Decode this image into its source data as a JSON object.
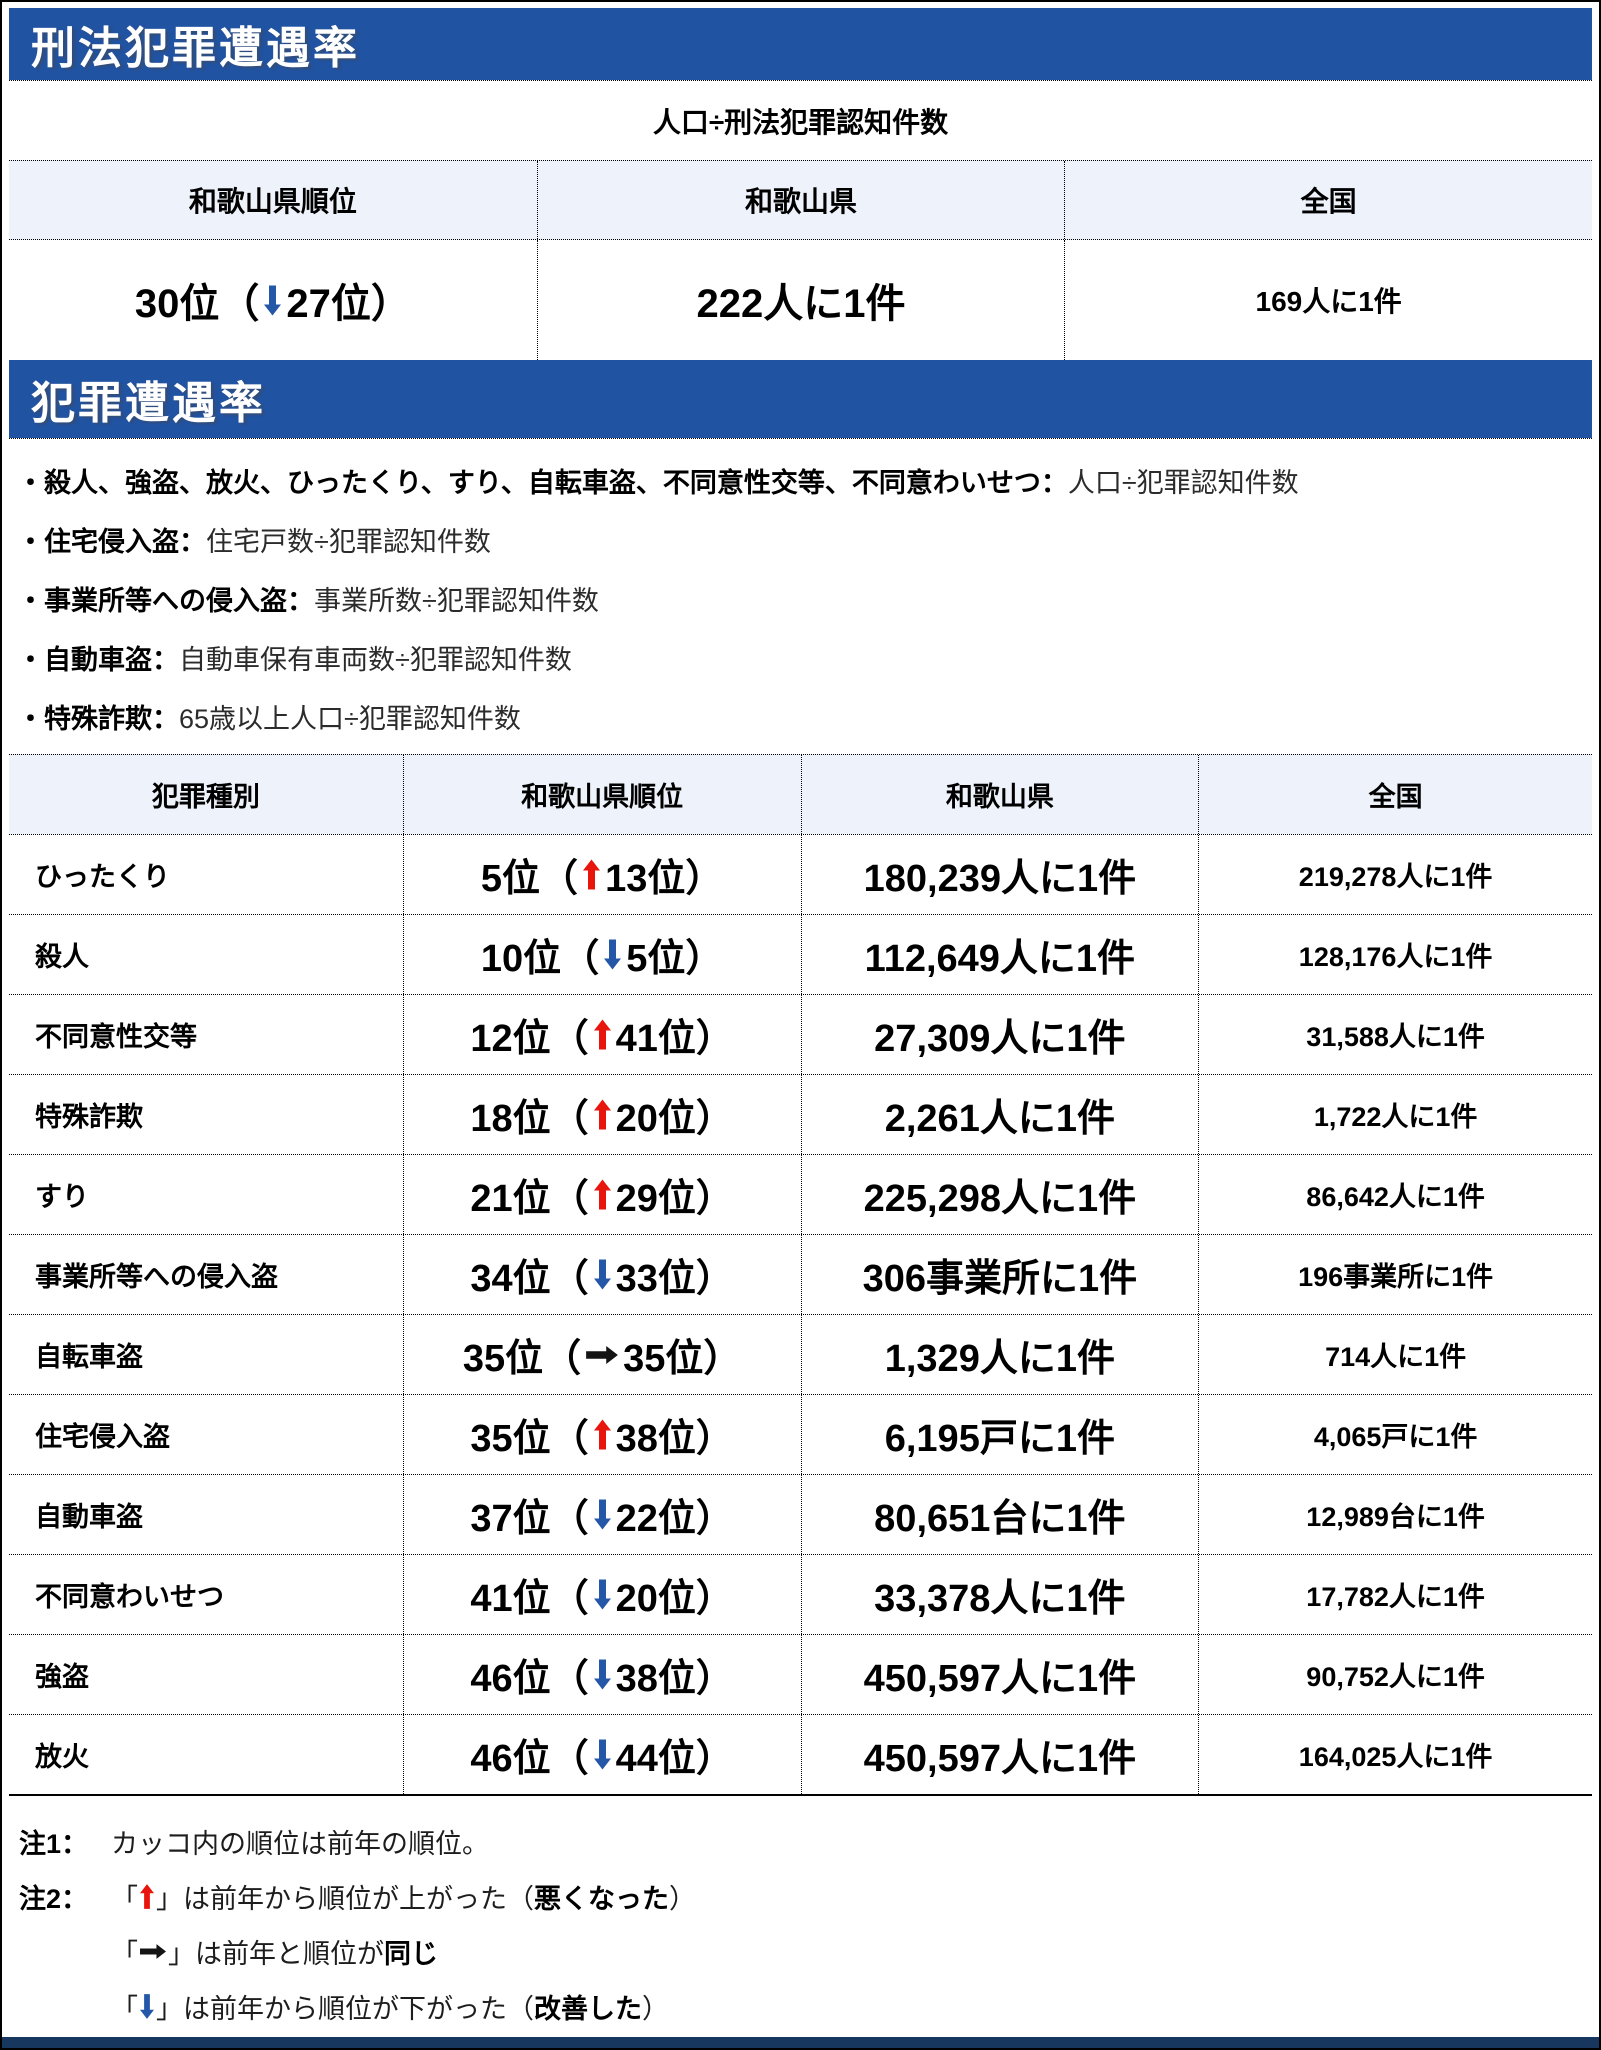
{
  "page": {
    "section1_title": "刑法犯罪遭遇率",
    "section2_title": "犯罪遭遇率"
  },
  "glyphs": {
    "paren_open": "（",
    "paren_close": "）",
    "quote_open": "「",
    "quote_close": "」"
  },
  "colors": {
    "band_blue": "#2153a3",
    "table_header_bg": "#eef2fa",
    "arrow_up_red": "#e8150c",
    "arrow_down_blue": "#2457a8",
    "arrow_same": "#141414",
    "footer_bar": "#17375e"
  },
  "summary_table": {
    "formula": "人口÷刑法犯罪認知件数",
    "headers": [
      "和歌山県順位",
      "和歌山県",
      "全国"
    ],
    "row": {
      "rank": "30位",
      "prev_rank": "27位",
      "arrow": "down",
      "wakayama": "222人に1件",
      "national": "169人に1件"
    }
  },
  "definitions": [
    {
      "label": "・殺人、強盗、放火、ひったくり、すり、自転車盗、不同意性交等、不同意わいせつ：",
      "formula": "人口÷犯罪認知件数"
    },
    {
      "label": "・住宅侵入盗：",
      "formula": "住宅戸数÷犯罪認知件数"
    },
    {
      "label": "・事業所等への侵入盗：",
      "formula": "事業所数÷犯罪認知件数"
    },
    {
      "label": "・自動車盗：",
      "formula": "自動車保有車両数÷犯罪認知件数"
    },
    {
      "label": "・特殊詐欺：",
      "formula": "65歳以上人口÷犯罪認知件数"
    }
  ],
  "crime_table": {
    "headers": [
      "犯罪種別",
      "和歌山県順位",
      "和歌山県",
      "全国"
    ],
    "rows": [
      {
        "type": "ひったくり",
        "rank": "5位",
        "prev_rank": "13位",
        "arrow": "up",
        "wakayama": "180,239人に1件",
        "national": "219,278人に1件"
      },
      {
        "type": "殺人",
        "rank": "10位",
        "prev_rank": "5位",
        "arrow": "down",
        "wakayama": "112,649人に1件",
        "national": "128,176人に1件"
      },
      {
        "type": "不同意性交等",
        "rank": "12位",
        "prev_rank": "41位",
        "arrow": "up",
        "wakayama": "27,309人に1件",
        "national": "31,588人に1件"
      },
      {
        "type": "特殊詐欺",
        "rank": "18位",
        "prev_rank": "20位",
        "arrow": "up",
        "wakayama": "2,261人に1件",
        "national": "1,722人に1件"
      },
      {
        "type": "すり",
        "rank": "21位",
        "prev_rank": "29位",
        "arrow": "up",
        "wakayama": "225,298人に1件",
        "national": "86,642人に1件"
      },
      {
        "type": "事業所等への侵入盗",
        "rank": "34位",
        "prev_rank": "33位",
        "arrow": "down",
        "wakayama": "306事業所に1件",
        "national": "196事業所に1件"
      },
      {
        "type": "自転車盗",
        "rank": "35位",
        "prev_rank": "35位",
        "arrow": "same",
        "wakayama": "1,329人に1件",
        "national": "714人に1件"
      },
      {
        "type": "住宅侵入盗",
        "rank": "35位",
        "prev_rank": "38位",
        "arrow": "up",
        "wakayama": "6,195戸に1件",
        "national": "4,065戸に1件"
      },
      {
        "type": "自動車盗",
        "rank": "37位",
        "prev_rank": "22位",
        "arrow": "down",
        "wakayama": "80,651台に1件",
        "national": "12,989台に1件"
      },
      {
        "type": "不同意わいせつ",
        "rank": "41位",
        "prev_rank": "20位",
        "arrow": "down",
        "wakayama": "33,378人に1件",
        "national": "17,782人に1件"
      },
      {
        "type": "強盗",
        "rank": "46位",
        "prev_rank": "38位",
        "arrow": "down",
        "wakayama": "450,597人に1件",
        "national": "90,752人に1件"
      },
      {
        "type": "放火",
        "rank": "46位",
        "prev_rank": "44位",
        "arrow": "down",
        "wakayama": "450,597人に1件",
        "national": "164,025人に1件"
      }
    ]
  },
  "notes": {
    "note1_label": "注1：",
    "note1_text": "カッコ内の順位は前年の順位。",
    "note2_label": "注2：",
    "note2_items": [
      {
        "arrow": "up",
        "text": "は前年から順位が上がった（",
        "bold": "悪くなった",
        "tail": "）"
      },
      {
        "arrow": "same",
        "text": "は前年と順位が",
        "bold": "同じ",
        "tail": ""
      },
      {
        "arrow": "down",
        "text": "は前年から順位が下がった（",
        "bold": "改善した",
        "tail": "）"
      }
    ]
  }
}
